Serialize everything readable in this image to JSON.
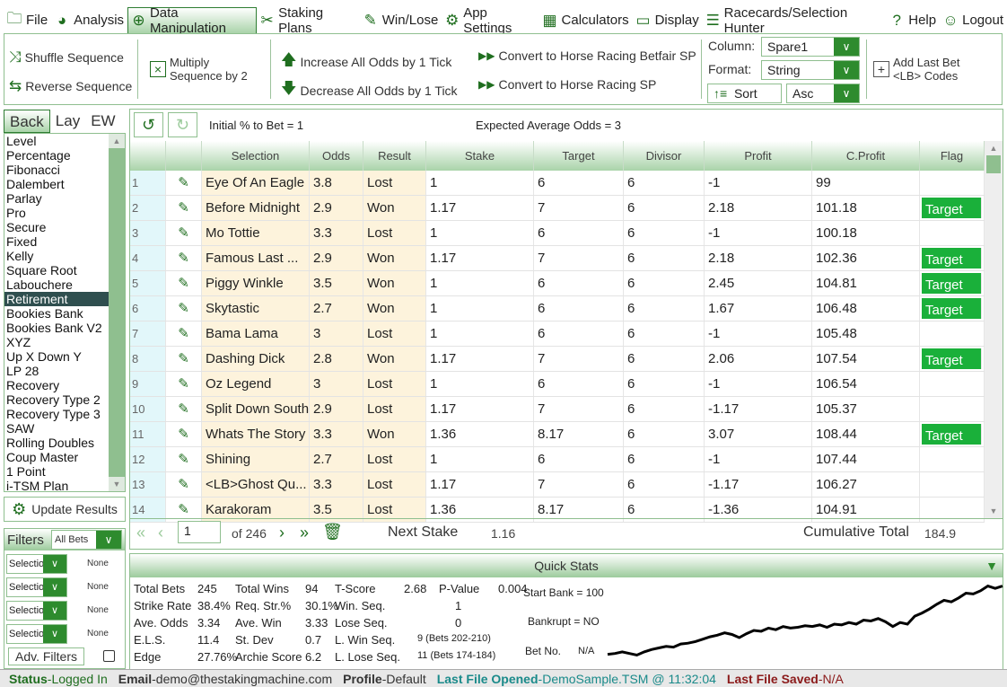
{
  "menu": [
    {
      "label": "File",
      "icon": "folder-icon"
    },
    {
      "label": "Analysis",
      "icon": "pie-chart-icon"
    },
    {
      "label": "Data Manipulation",
      "icon": "plus-circle-icon",
      "active": true
    },
    {
      "label": "Staking Plans",
      "icon": "tools-icon"
    },
    {
      "label": "Win/Lose",
      "icon": "edit-icon"
    },
    {
      "label": "App Settings",
      "icon": "gear-icon"
    },
    {
      "label": "Calculators",
      "icon": "calculator-icon"
    },
    {
      "label": "Display",
      "icon": "monitor-icon"
    },
    {
      "label": "Racecards/Selection Hunter",
      "icon": "list-icon"
    },
    {
      "label": "Help",
      "icon": "question-icon"
    },
    {
      "label": "Logout",
      "icon": "user-icon"
    }
  ],
  "ribbon": {
    "shuffle": "Shuffle Sequence",
    "reverse": "Reverse Sequence",
    "multiply": "Multiply Sequence by 2",
    "increase": "Increase All Odds by 1 Tick",
    "decrease": "Decrease All Odds by 1 Tick",
    "betfair_sp": "Convert to Horse Racing Betfair SP",
    "sp": "Convert to Horse Racing SP",
    "column_label": "Column:",
    "column_value": "Spare1",
    "format_label": "Format:",
    "format_value": "String",
    "sort_label": "Sort",
    "order_value": "Asc",
    "add_lb": "Add Last Bet <LB> Codes"
  },
  "bet_tabs": [
    "Back",
    "Lay",
    "EW"
  ],
  "plans": [
    "Level",
    "Percentage",
    "Fibonacci",
    "Dalembert",
    "Parlay",
    "Pro",
    "Secure",
    "Fixed",
    "Kelly",
    "Square Root",
    "Labouchere",
    "Retirement",
    "Bookies Bank",
    "Bookies Bank V2",
    "XYZ",
    "Up X Down Y",
    "LP 28",
    "Recovery",
    "Recovery Type 2",
    "Recovery Type 3",
    "SAW",
    "Rolling Doubles",
    "Coup Master",
    "1 Point",
    "i-TSM Plan"
  ],
  "selected_plan": "Retirement",
  "update_results": "Update Results",
  "filters": {
    "label": "Filters",
    "value": "All Bets",
    "rows": [
      {
        "sel": "Selection",
        "val": "None"
      },
      {
        "sel": "Selection",
        "val": "None"
      },
      {
        "sel": "Selection",
        "val": "None"
      },
      {
        "sel": "Selection",
        "val": "None"
      }
    ],
    "adv": "Adv. Filters"
  },
  "toolbar": {
    "initial": "Initial % to Bet = 1",
    "expected": "Expected Average Odds = 3"
  },
  "columns": [
    "",
    "",
    "Selection",
    "Odds",
    "Result",
    "Stake",
    "Target",
    "Divisor",
    "Profit",
    "C.Profit",
    "Flag"
  ],
  "rows": [
    [
      "1",
      "Eye Of An Eagle",
      "3.8",
      "Lost",
      "1",
      "6",
      "6",
      "-1",
      "99",
      ""
    ],
    [
      "2",
      "Before Midnight",
      "2.9",
      "Won",
      "1.17",
      "7",
      "6",
      "2.18",
      "101.18",
      "Target"
    ],
    [
      "3",
      "Mo Tottie",
      "3.3",
      "Lost",
      "1",
      "6",
      "6",
      "-1",
      "100.18",
      ""
    ],
    [
      "4",
      "Famous Last ...",
      "2.9",
      "Won",
      "1.17",
      "7",
      "6",
      "2.18",
      "102.36",
      "Target"
    ],
    [
      "5",
      "Piggy Winkle",
      "3.5",
      "Won",
      "1",
      "6",
      "6",
      "2.45",
      "104.81",
      "Target"
    ],
    [
      "6",
      "Skytastic",
      "2.7",
      "Won",
      "1",
      "6",
      "6",
      "1.67",
      "106.48",
      "Target"
    ],
    [
      "7",
      "Bama Lama",
      "3",
      "Lost",
      "1",
      "6",
      "6",
      "-1",
      "105.48",
      ""
    ],
    [
      "8",
      "Dashing Dick",
      "2.8",
      "Won",
      "1.17",
      "7",
      "6",
      "2.06",
      "107.54",
      "Target"
    ],
    [
      "9",
      "Oz Legend",
      "3",
      "Lost",
      "1",
      "6",
      "6",
      "-1",
      "106.54",
      ""
    ],
    [
      "10",
      "Split Down South",
      "2.9",
      "Lost",
      "1.17",
      "7",
      "6",
      "-1.17",
      "105.37",
      ""
    ],
    [
      "11",
      "Whats The Story",
      "3.3",
      "Won",
      "1.36",
      "8.17",
      "6",
      "3.07",
      "108.44",
      "Target"
    ],
    [
      "12",
      "Shining",
      "2.7",
      "Lost",
      "1",
      "6",
      "6",
      "-1",
      "107.44",
      ""
    ],
    [
      "13",
      "<LB>Ghost Qu...",
      "3.3",
      "Lost",
      "1.17",
      "7",
      "6",
      "-1.17",
      "106.27",
      ""
    ],
    [
      "14",
      "Karakoram",
      "3.5",
      "Lost",
      "1.36",
      "8.17",
      "6",
      "-1.36",
      "104.91",
      ""
    ]
  ],
  "pager": {
    "page": "1",
    "of": "of 246",
    "next_stake_label": "Next Stake",
    "next_stake": "1.16",
    "cum_label": "Cumulative Total",
    "cum": "184.9"
  },
  "quick_stats": {
    "title": "Quick Stats",
    "cells": [
      [
        "Total Bets",
        "245",
        "Total Wins",
        "94",
        "T-Score",
        "2.68",
        "P-Value",
        "0.004"
      ],
      [
        "Strike Rate",
        "38.4%",
        "Req. Str.%",
        "30.1%",
        "Win. Seq.",
        "1"
      ],
      [
        "Ave. Odds",
        "3.34",
        "Ave. Win",
        "3.33",
        "Lose Seq.",
        "0"
      ],
      [
        "E.L.S.",
        "11.4",
        "St. Dev",
        "0.7",
        "L. Win Seq.",
        "9 (Bets 202-210)"
      ],
      [
        "Edge",
        "27.76%",
        "Archie Score",
        "6.2",
        "L. Lose Seq.",
        "11 (Bets 174-184)"
      ]
    ],
    "start_bank": "Start Bank = 100",
    "bankrupt": "Bankrupt = NO",
    "bet_no_label": "Bet No.",
    "bet_no": "N/A"
  },
  "chart_data": {
    "type": "line",
    "values": [
      100,
      101,
      103,
      101,
      99,
      103,
      106,
      108,
      110,
      109,
      113,
      114,
      116,
      119,
      122,
      124,
      127,
      125,
      121,
      126,
      130,
      129,
      133,
      131,
      135,
      133,
      134,
      136,
      135,
      137,
      134,
      138,
      137,
      140,
      138,
      143,
      142,
      145,
      141,
      135,
      140,
      138,
      148,
      152,
      157,
      163,
      168,
      166,
      171,
      177,
      176,
      180,
      186,
      183,
      186
    ]
  },
  "status": [
    {
      "k": "Status",
      "v": "Logged In",
      "color": "#1f6e1f"
    },
    {
      "k": "Email",
      "v": "demo@thestakingmachine.com",
      "color": "#333"
    },
    {
      "k": "Profile",
      "v": "Default",
      "color": "#333"
    },
    {
      "k": "Last File Opened",
      "v": "DemoSample.TSM @ 11:32:04",
      "color": "#1a8a8a"
    },
    {
      "k": "Last File Saved",
      "v": "N/A",
      "color": "#8b1a1a"
    }
  ],
  "colors": {
    "accent": "#2e8b2e",
    "flag": "#1ab03a"
  }
}
